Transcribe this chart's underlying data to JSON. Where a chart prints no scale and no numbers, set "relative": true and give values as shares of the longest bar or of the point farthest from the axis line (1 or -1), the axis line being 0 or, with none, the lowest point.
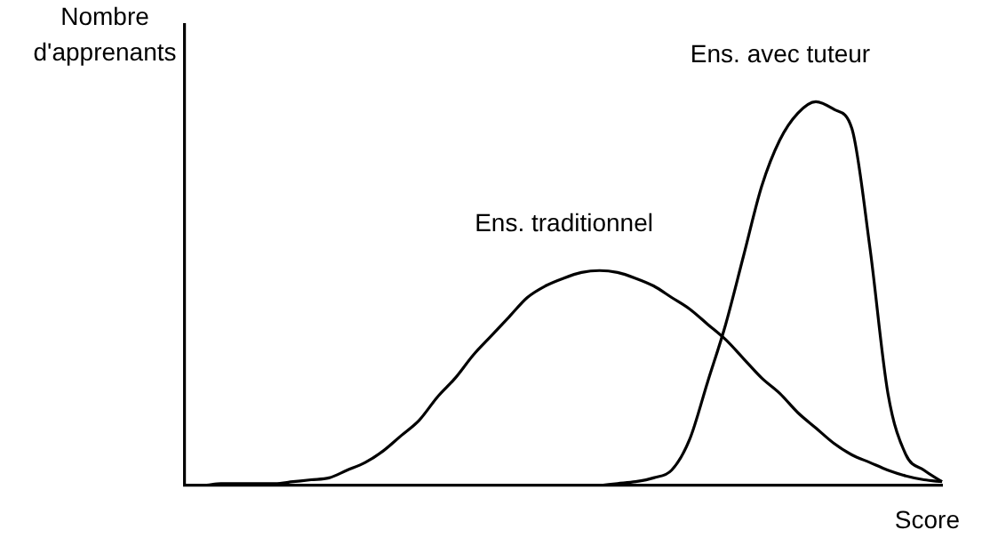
{
  "chart_data": {
    "type": "line",
    "relative": true,
    "xlabel": "Score",
    "ylabel": "Nombre\nd'apprenants",
    "categories": [
      null,
      null,
      null,
      null,
      null,
      null,
      null,
      null,
      null,
      null,
      null,
      null,
      null,
      null,
      null,
      null,
      null,
      null,
      null,
      null,
      null,
      null,
      null,
      null,
      null,
      null,
      null,
      null,
      null,
      null,
      null,
      null,
      null,
      null,
      null,
      null,
      null,
      null,
      null,
      null,
      null,
      null,
      null
    ],
    "series": [
      {
        "name": "Ens. traditionnel",
        "color": "#000000",
        "values": [
          0,
          0,
          0.005,
          0.005,
          0.005,
          0.005,
          0.01,
          0.015,
          0.02,
          0.04,
          0.06,
          0.09,
          0.13,
          0.17,
          0.23,
          0.28,
          0.34,
          0.39,
          0.44,
          0.49,
          0.52,
          0.54,
          0.555,
          0.56,
          0.555,
          0.54,
          0.52,
          0.49,
          0.46,
          0.42,
          0.38,
          0.33,
          0.28,
          0.24,
          0.19,
          0.15,
          0.11,
          0.08,
          0.06,
          0.04,
          0.025,
          0.015,
          0.01
        ]
      },
      {
        "name": "Ens. avec tuteur",
        "color": "#000000",
        "values": [
          null,
          null,
          null,
          null,
          null,
          null,
          null,
          null,
          null,
          null,
          null,
          null,
          null,
          null,
          null,
          null,
          null,
          null,
          null,
          null,
          null,
          null,
          null,
          0,
          0.005,
          0.01,
          0.02,
          0.04,
          0.12,
          0.27,
          0.42,
          0.6,
          0.78,
          0.9,
          0.97,
          1,
          0.98,
          0.93,
          0.62,
          0.24,
          0.08,
          0.04,
          0.01
        ]
      }
    ],
    "legend": false,
    "grid": false,
    "marker": "none",
    "line_style": "solid"
  }
}
